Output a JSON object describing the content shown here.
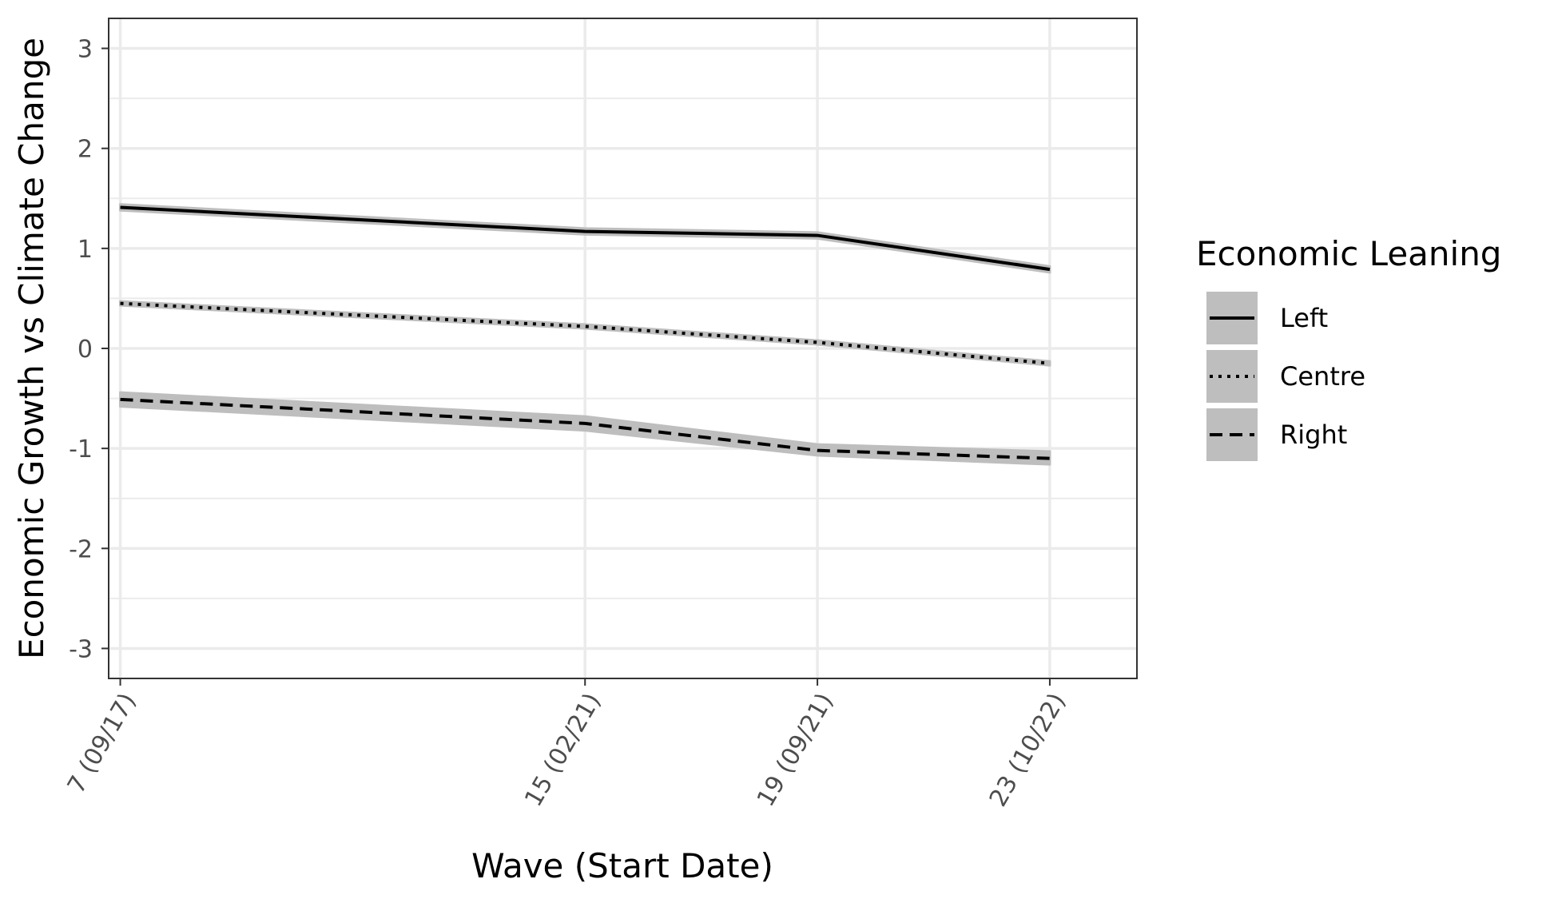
{
  "chart_data": {
    "type": "line",
    "xlabel": "Wave (Start Date)",
    "ylabel": "Economic Growth vs Climate Change",
    "x_ticks": [
      {
        "position": 7,
        "label": "7 (09/17)"
      },
      {
        "position": 15,
        "label": "15 (02/21)"
      },
      {
        "position": 19,
        "label": "19 (09/21)"
      },
      {
        "position": 23,
        "label": "23 (10/22)"
      }
    ],
    "xlim": [
      6.8,
      24.5
    ],
    "ylim": [
      -3.3,
      3.3
    ],
    "y_ticks": [
      {
        "value": -3,
        "label": "-3"
      },
      {
        "value": -2,
        "label": "-2"
      },
      {
        "value": -1,
        "label": "-1"
      },
      {
        "value": 0,
        "label": "0"
      },
      {
        "value": 1,
        "label": "1"
      },
      {
        "value": 2,
        "label": "2"
      },
      {
        "value": 3,
        "label": "3"
      }
    ],
    "y_minor": [
      -2.5,
      -1.5,
      -0.5,
      0.5,
      1.5,
      2.5
    ],
    "x_minor": [],
    "grid": true,
    "legend": {
      "title": "Economic Leaning",
      "position": "right"
    },
    "series": [
      {
        "name": "Left",
        "linetype": "solid",
        "x": [
          7,
          15,
          19,
          23
        ],
        "values": [
          1.41,
          1.17,
          1.13,
          0.79
        ],
        "lower": [
          1.38,
          1.14,
          1.1,
          0.76
        ],
        "upper": [
          1.44,
          1.2,
          1.16,
          0.82
        ]
      },
      {
        "name": "Centre",
        "linetype": "dotted",
        "x": [
          7,
          15,
          19,
          23
        ],
        "values": [
          0.45,
          0.22,
          0.06,
          -0.15
        ],
        "lower": [
          0.43,
          0.2,
          0.04,
          -0.17
        ],
        "upper": [
          0.47,
          0.24,
          0.08,
          -0.13
        ]
      },
      {
        "name": "Right",
        "linetype": "dashed",
        "x": [
          7,
          15,
          19,
          23
        ],
        "values": [
          -0.51,
          -0.75,
          -1.02,
          -1.1
        ],
        "lower": [
          -0.58,
          -0.82,
          -1.07,
          -1.16
        ],
        "upper": [
          -0.44,
          -0.68,
          -0.96,
          -1.03
        ]
      }
    ],
    "colors": {
      "line": "#000000",
      "ribbon": "#bebebe",
      "panel_border": "#333333",
      "grid": "#ebebeb",
      "tick_text": "#4d4d4d"
    }
  }
}
